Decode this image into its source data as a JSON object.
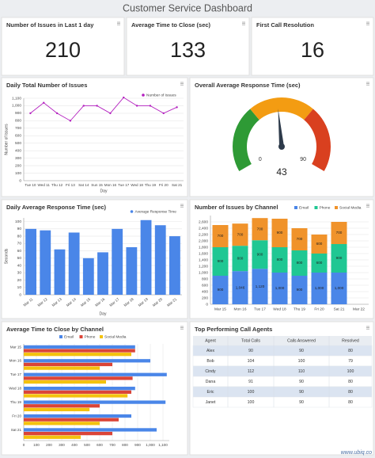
{
  "title": "Customer Service Dashboard",
  "kpis": [
    {
      "label": "Number of Issues in Last 1 day",
      "value": 210
    },
    {
      "label": "Average Time to Close (sec)",
      "value": 133
    },
    {
      "label": "First Call Resolution",
      "value": 16
    }
  ],
  "chart_data": [
    {
      "type": "line",
      "title": "Daily Total Number of Issues",
      "xlabel": "Day",
      "ylabel": "Number of Issues",
      "categories": [
        "Tue 10",
        "Wed 11",
        "Thu 12",
        "Fri 13",
        "Sat 14",
        "Sun 15",
        "Mon 16",
        "Tue 17",
        "Wed 18",
        "Thu 19",
        "Fri 20",
        "Sat 21"
      ],
      "series": [
        {
          "name": "Number of Issues",
          "color": "#b31fbf",
          "values": [
            900,
            1040,
            900,
            800,
            1000,
            1000,
            900,
            1110,
            1000,
            1000,
            900,
            980
          ]
        }
      ],
      "ylim": [
        0,
        1100
      ],
      "yticks": [
        0,
        100,
        200,
        300,
        400,
        500,
        600,
        700,
        800,
        900,
        {
          "value": 1000,
          "label": "1,000"
        },
        {
          "value": 1100,
          "label": "1,100"
        }
      ],
      "grid": true,
      "legend": "top-right"
    },
    {
      "type": "gauge",
      "title": "Overall Average Response Time (sec)",
      "min": 0,
      "max": 90,
      "value": 43,
      "bands": [
        {
          "from": 0,
          "to": 30,
          "color": "#2e9a35"
        },
        {
          "from": 30,
          "to": 60,
          "color": "#f39c12"
        },
        {
          "from": 60,
          "to": 90,
          "color": "#d9401f"
        }
      ]
    },
    {
      "type": "bar",
      "title": "Daily Average Response Time (sec)",
      "xlabel": "Day",
      "ylabel": "Seconds",
      "categories": [
        "Mar 11",
        "Mar 12",
        "Mar 13",
        "Mar 14",
        "Mar 15",
        "Mar 16",
        "Mar 17",
        "Mar 18",
        "Mar 19",
        "Mar 20",
        "Mar 21"
      ],
      "series": [
        {
          "name": "Average Response Time",
          "color": "#4a86e8",
          "values": [
            90,
            88,
            62,
            85,
            50,
            58,
            90,
            65,
            102,
            95,
            80
          ]
        }
      ],
      "ylim": [
        0,
        105
      ],
      "yticks": [
        0,
        10,
        20,
        30,
        40,
        50,
        60,
        70,
        80,
        90,
        100
      ],
      "grid": true,
      "legend": "top-right"
    },
    {
      "type": "stacked_bar",
      "title": "Number of Issues by Channel",
      "categories": [
        "Mar 15",
        "Mon 16",
        "Tue 17",
        "Wed 18",
        "Thu 19",
        "Fri 20",
        "Sat 21",
        "Mar 22"
      ],
      "series": [
        {
          "name": "Email",
          "color": "#4a86e8",
          "values": [
            900,
            1046,
            1120,
            1000,
            900,
            1000,
            1000,
            null
          ],
          "value_labels": [
            "900",
            "1,046",
            "1,120",
            "1,000",
            "900",
            "1,000",
            "1,000",
            null
          ]
        },
        {
          "name": "Phone",
          "color": "#1fc793",
          "values": [
            900,
            800,
            900,
            800,
            800,
            600,
            900,
            null
          ],
          "value_labels": [
            "900",
            "800",
            "900",
            "800",
            "800",
            "600",
            "900",
            null
          ]
        },
        {
          "name": "Social Media",
          "color": "#f0932b",
          "values": [
            700,
            700,
            700,
            900,
            700,
            600,
            700,
            null
          ],
          "value_labels": [
            "700",
            "700",
            "700",
            "900",
            "700",
            "600",
            "700",
            null
          ]
        }
      ],
      "ylim": [
        0,
        2800
      ],
      "yticks": [
        0,
        200,
        400,
        600,
        800,
        {
          "value": 1000,
          "label": "1,000"
        },
        {
          "value": 1200,
          "label": "1,200"
        },
        {
          "value": 1400,
          "label": "1,400"
        },
        {
          "value": 1600,
          "label": "1,600"
        },
        {
          "value": 1800,
          "label": "1,800"
        },
        {
          "value": 2000,
          "label": "2,000"
        },
        {
          "value": 2200,
          "label": "2,200"
        },
        {
          "value": 2400,
          "label": "2,400"
        },
        {
          "value": 2600,
          "label": "2,600"
        }
      ],
      "grid": true,
      "legend": "top-right"
    },
    {
      "type": "hbar",
      "title": "Average Time to Close by Channel",
      "categories": [
        "Mar 15",
        "Mon 16",
        "Tue 17",
        "Wed 18",
        "Thu 19",
        "Fri 20",
        "Sat 21"
      ],
      "series": [
        {
          "name": "Email",
          "color": "#4a86e8",
          "values": [
            880,
            1000,
            1130,
            880,
            1120,
            850,
            1050
          ]
        },
        {
          "name": "Phone",
          "color": "#db4437",
          "values": [
            880,
            700,
            860,
            850,
            600,
            750,
            700
          ]
        },
        {
          "name": "Social Media",
          "color": "#f4c20d",
          "values": [
            850,
            600,
            650,
            820,
            520,
            600,
            450
          ]
        }
      ],
      "xlim": [
        0,
        1150
      ],
      "xticks": [
        0,
        100,
        200,
        300,
        400,
        500,
        600,
        700,
        800,
        900,
        {
          "value": 1000,
          "label": "1,000"
        },
        {
          "value": 1100,
          "label": "1,100"
        }
      ],
      "grid": true,
      "legend": "top"
    }
  ],
  "table": {
    "title": "Top Performing Call Agents",
    "columns": [
      "Agent",
      "Total Calls",
      "Calls Answered",
      "Resolved"
    ],
    "rows": [
      [
        "Alex",
        90,
        90,
        80
      ],
      [
        "Bob",
        104,
        100,
        79
      ],
      [
        "Cindy",
        112,
        110,
        100
      ],
      [
        "Dana",
        91,
        90,
        80
      ],
      [
        "Eric",
        100,
        90,
        80
      ],
      [
        "Janet",
        100,
        90,
        80
      ]
    ]
  },
  "watermark": "www.ubiq.co"
}
